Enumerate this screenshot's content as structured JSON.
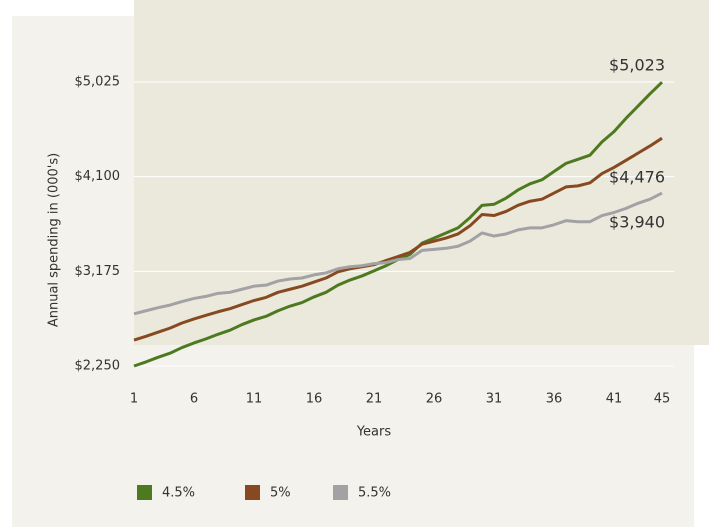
{
  "chart_data": {
    "type": "line",
    "ylabel": "Annual spending in (000's)",
    "xlabel": "Years",
    "x": [
      1,
      2,
      3,
      4,
      5,
      6,
      7,
      8,
      9,
      10,
      11,
      12,
      13,
      14,
      15,
      16,
      17,
      18,
      19,
      20,
      21,
      22,
      23,
      24,
      25,
      26,
      27,
      28,
      29,
      30,
      31,
      32,
      33,
      34,
      35,
      36,
      37,
      38,
      39,
      40,
      41,
      42,
      43,
      44,
      45
    ],
    "series": [
      {
        "name": "4.5%",
        "color": "#4e7a1f",
        "end_label": "$5,023",
        "values": [
          2250,
          2290,
          2335,
          2375,
          2430,
          2475,
          2515,
          2560,
          2600,
          2655,
          2700,
          2735,
          2790,
          2835,
          2870,
          2925,
          2970,
          3040,
          3090,
          3130,
          3180,
          3230,
          3290,
          3340,
          3450,
          3500,
          3550,
          3600,
          3700,
          3820,
          3830,
          3890,
          3970,
          4030,
          4070,
          4150,
          4230,
          4270,
          4310,
          4440,
          4540,
          4670,
          4790,
          4910,
          5023
        ]
      },
      {
        "name": "5%",
        "color": "#874a20",
        "end_label": "$4,476",
        "values": [
          2504,
          2540,
          2580,
          2620,
          2670,
          2710,
          2745,
          2780,
          2810,
          2850,
          2890,
          2920,
          2970,
          3000,
          3030,
          3070,
          3110,
          3170,
          3200,
          3220,
          3240,
          3280,
          3320,
          3360,
          3440,
          3470,
          3500,
          3540,
          3620,
          3730,
          3720,
          3760,
          3820,
          3860,
          3880,
          3940,
          4000,
          4010,
          4040,
          4130,
          4190,
          4260,
          4330,
          4400,
          4476
        ]
      },
      {
        "name": "5.5%",
        "color": "#a2a2a4",
        "end_label": "$3,940",
        "values": [
          2760,
          2790,
          2820,
          2845,
          2880,
          2910,
          2930,
          2960,
          2970,
          3000,
          3030,
          3040,
          3080,
          3100,
          3110,
          3140,
          3160,
          3200,
          3220,
          3230,
          3250,
          3260,
          3290,
          3300,
          3380,
          3390,
          3400,
          3420,
          3470,
          3550,
          3520,
          3540,
          3580,
          3600,
          3600,
          3630,
          3670,
          3660,
          3660,
          3720,
          3750,
          3790,
          3840,
          3880,
          3940
        ]
      }
    ],
    "xlim": [
      1,
      45
    ],
    "xticks": [
      1,
      6,
      11,
      16,
      21,
      26,
      31,
      36,
      41,
      45
    ],
    "ylim": [
      2250,
      5025
    ],
    "yticks": [
      {
        "value": 2250,
        "label": "$2,250"
      },
      {
        "value": 3175,
        "label": "$3,175"
      },
      {
        "value": 4100,
        "label": "$4,100"
      },
      {
        "value": 5025,
        "label": "$5,025"
      }
    ],
    "grid": true
  }
}
